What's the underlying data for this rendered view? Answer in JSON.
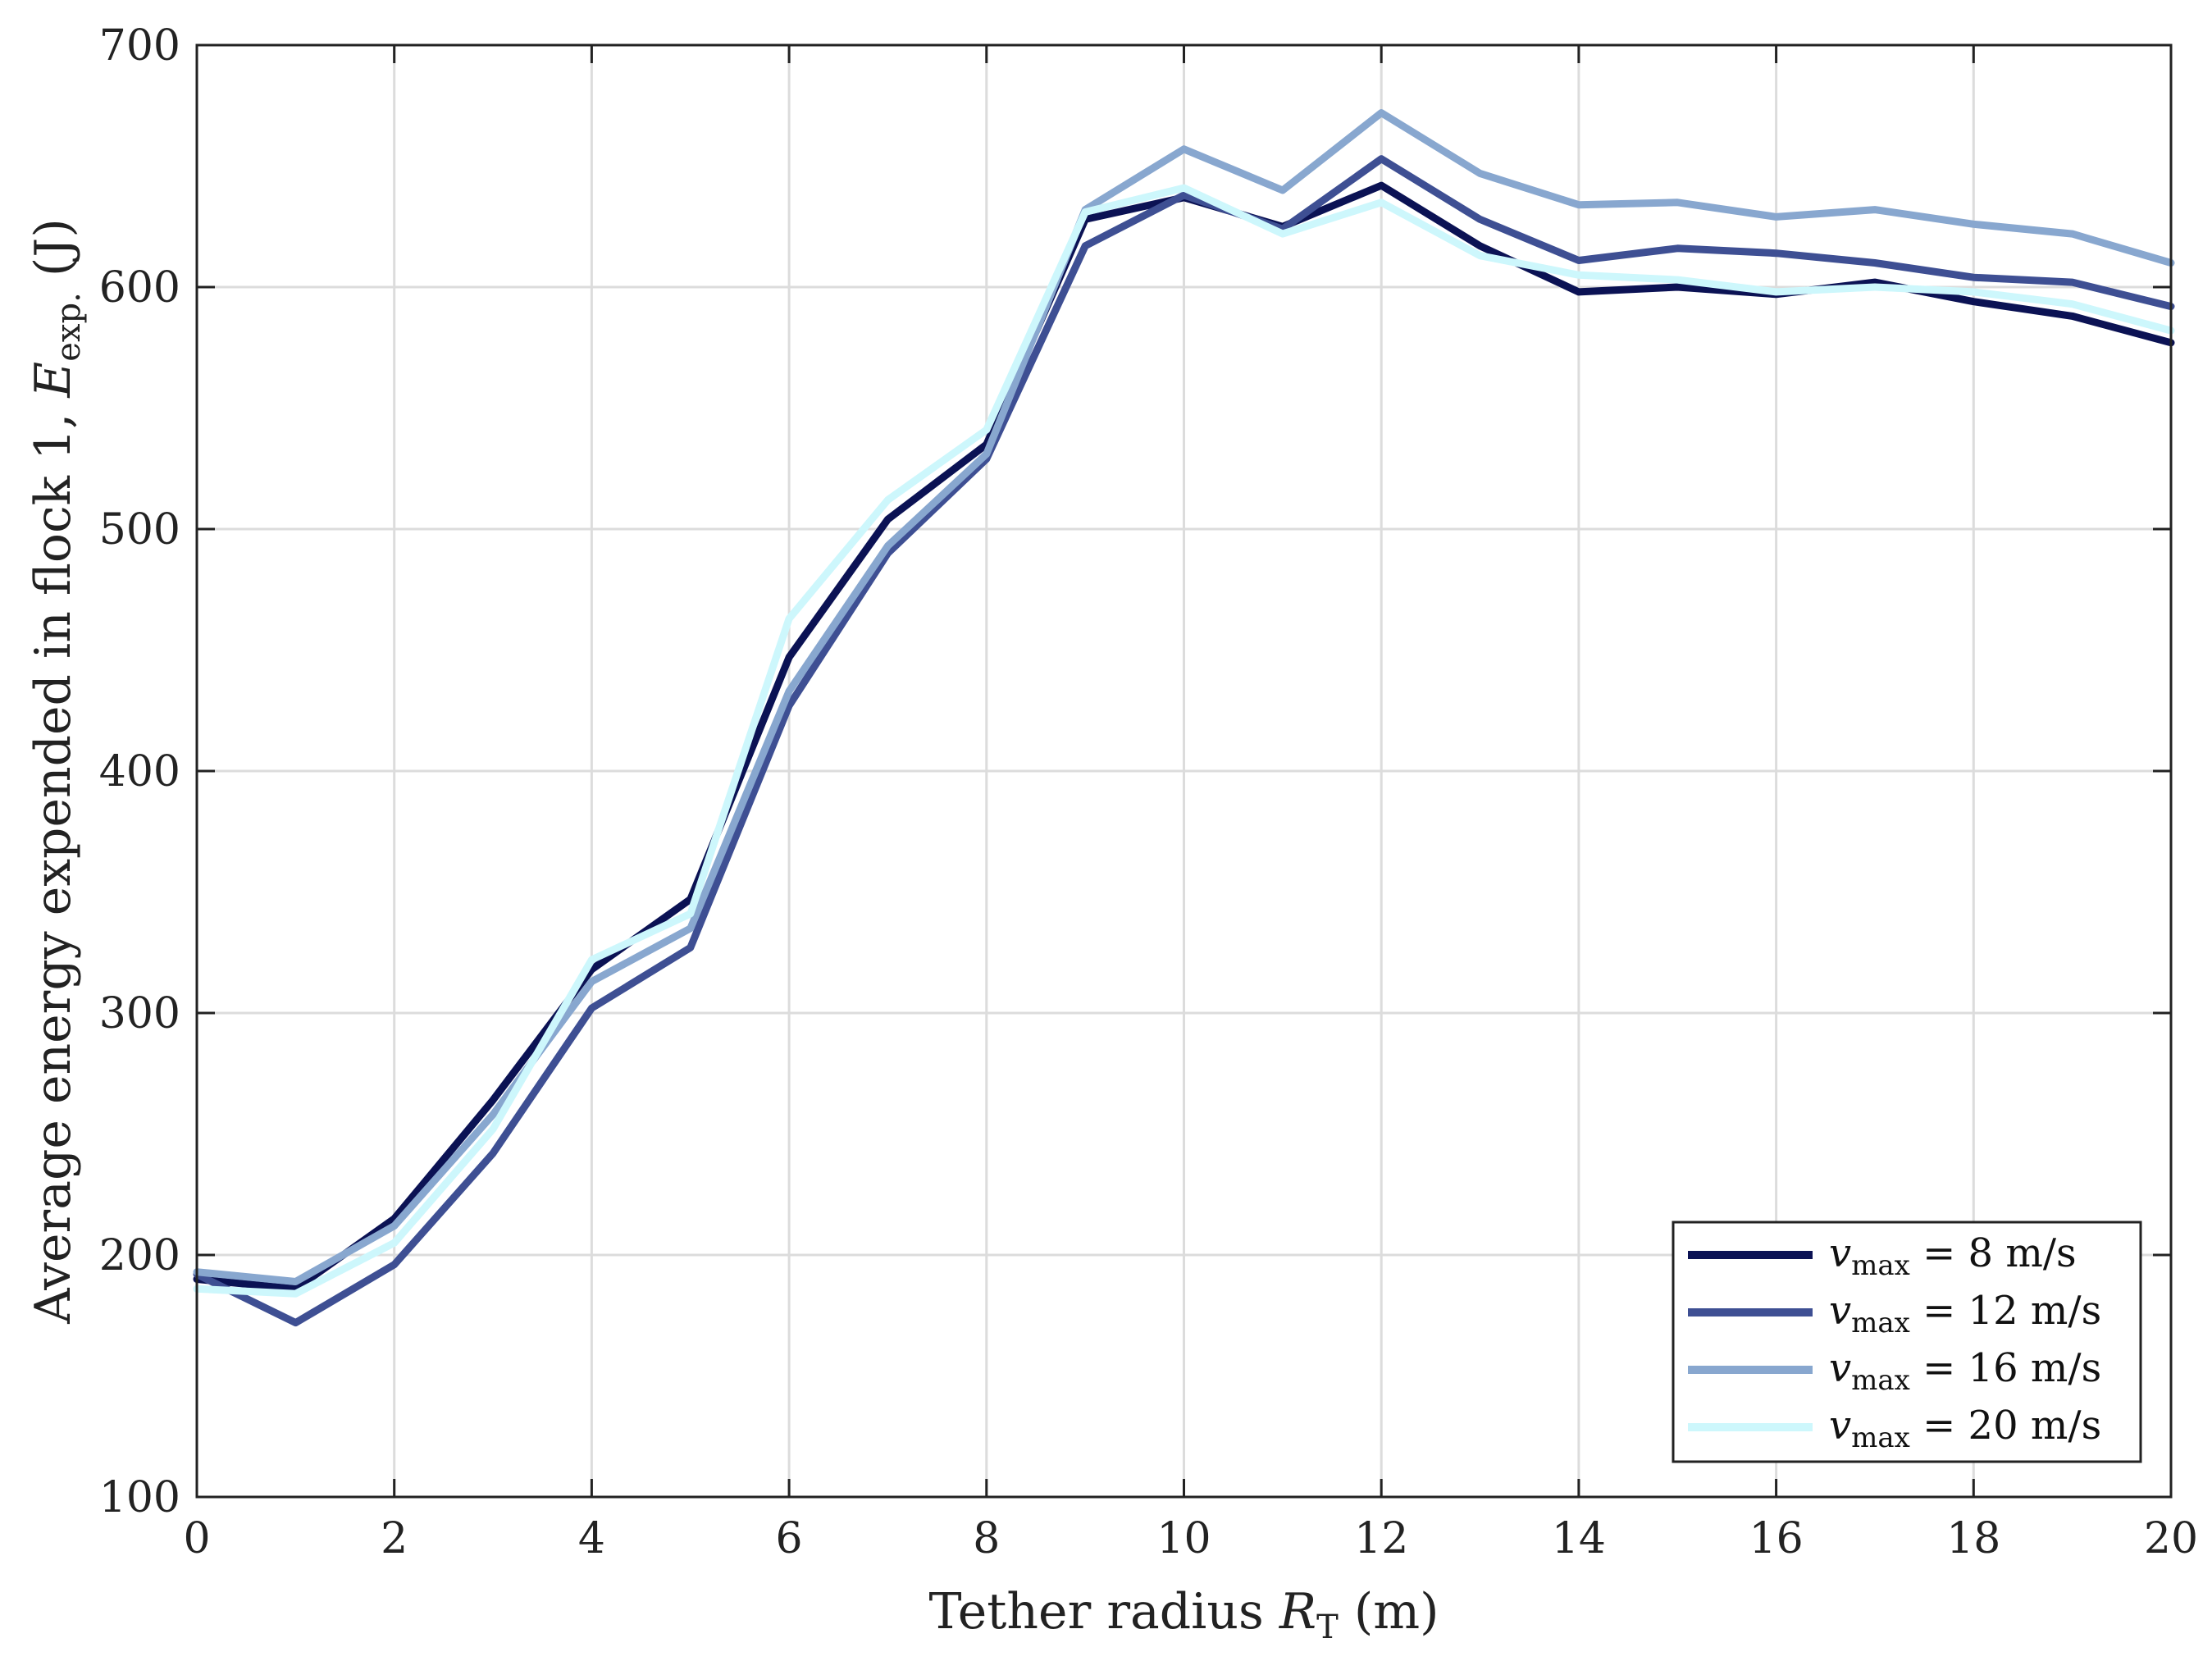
{
  "chart_data": {
    "type": "line",
    "xlabel": {
      "main": "Tether radius ",
      "var": "R",
      "sub": "T",
      "unit": " (m)"
    },
    "ylabel": {
      "main": "Average energy expended in flock 1, ",
      "var": "E",
      "sub": "exp.",
      "unit": " (J)"
    },
    "xlim": [
      0,
      20
    ],
    "ylim": [
      100,
      700
    ],
    "xticks": [
      0,
      2,
      4,
      6,
      8,
      10,
      12,
      14,
      16,
      18,
      20
    ],
    "yticks": [
      100,
      200,
      300,
      400,
      500,
      600,
      700
    ],
    "grid": true,
    "legend_position": "bottom-right",
    "x": [
      0,
      1,
      2,
      3,
      4,
      5,
      6,
      7,
      8,
      9,
      10,
      11,
      12,
      13,
      14,
      15,
      16,
      17,
      18,
      19,
      20
    ],
    "series": [
      {
        "name": "v_max = 8 m/s",
        "legend": {
          "var": "v",
          "sub": "max",
          "rest": " = 8 m/s"
        },
        "color": "#0b1254",
        "values": [
          190,
          186,
          215,
          264,
          318,
          347,
          447,
          504,
          535,
          628,
          637,
          625,
          642,
          617,
          598,
          600,
          597,
          602,
          594,
          588,
          577
        ]
      },
      {
        "name": "v_max = 12 m/s",
        "legend": {
          "var": "v",
          "sub": "max",
          "rest": " = 12 m/s"
        },
        "color": "#3e4f93",
        "values": [
          192,
          172,
          196,
          242,
          302,
          327,
          427,
          490,
          529,
          617,
          638,
          624,
          653,
          628,
          611,
          616,
          614,
          610,
          604,
          602,
          592
        ]
      },
      {
        "name": "v_max = 16 m/s",
        "legend": {
          "var": "v",
          "sub": "max",
          "rest": " = 16 m/s"
        },
        "color": "#88a7cf",
        "values": [
          193,
          189,
          212,
          258,
          313,
          335,
          433,
          493,
          531,
          632,
          657,
          640,
          672,
          647,
          634,
          635,
          629,
          632,
          626,
          622,
          610
        ]
      },
      {
        "name": "v_max = 20 m/s",
        "legend": {
          "var": "v",
          "sub": "max",
          "rest": " = 20 m/s"
        },
        "color": "#cdf7fc",
        "values": [
          186,
          184,
          205,
          252,
          322,
          341,
          463,
          512,
          541,
          631,
          641,
          622,
          635,
          613,
          605,
          603,
          598,
          600,
          598,
          593,
          582
        ]
      }
    ]
  }
}
